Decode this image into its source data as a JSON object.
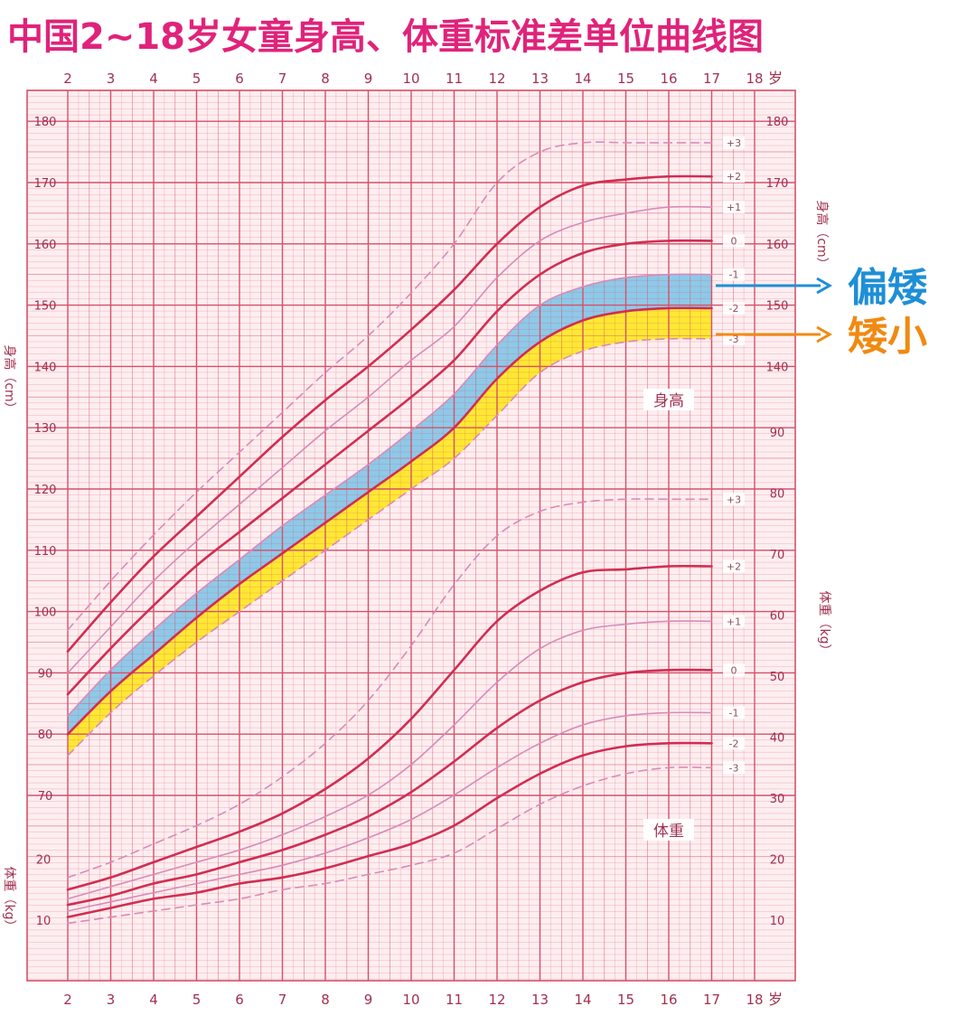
{
  "title": "中国2~18岁女童身高、体重标准差单位曲线图",
  "colors": {
    "title": "#e0237a",
    "grid": "#d6506a",
    "curve_main": "#d12d52",
    "curve_minor": "#d98ab8",
    "band_pianai": "#8ec9e8",
    "band_aixiao": "#ffe833",
    "annotation_pianai": "#1e8fd6",
    "annotation_aixiao": "#f08a12"
  },
  "annotations": {
    "pianai": "偏矮",
    "aixiao": "矮小"
  },
  "chart_data": {
    "type": "line",
    "x_unit": "岁",
    "x_ticks": [
      2,
      3,
      4,
      5,
      6,
      7,
      8,
      9,
      10,
      11,
      12,
      13,
      14,
      15,
      16,
      17,
      18
    ],
    "x_ticks_bottom": [
      2,
      3,
      4,
      5,
      6,
      7,
      8,
      9,
      10,
      11,
      12,
      13,
      14,
      15,
      16,
      17,
      18
    ],
    "height_label": "身高",
    "height_axis_label": "身高（cm）",
    "height_ticks": [
      70,
      80,
      90,
      100,
      110,
      120,
      130,
      140,
      150,
      160,
      170,
      180
    ],
    "weight_label": "体重",
    "weight_axis_label": "体重（kg）",
    "weight_ticks_right": [
      10,
      20,
      30,
      40,
      50,
      60,
      70,
      80,
      90
    ],
    "weight_ticks_left": [
      10,
      20
    ],
    "x": [
      2,
      3,
      4,
      5,
      6,
      7,
      8,
      9,
      10,
      11,
      12,
      13,
      14,
      15,
      16,
      17
    ],
    "height_series": [
      {
        "sd": "+3",
        "label": "+3",
        "values": [
          97,
          105,
          112.5,
          119.5,
          126,
          132.5,
          139,
          145,
          152,
          160,
          170,
          175,
          176.5,
          176.5,
          176.5,
          176.5
        ]
      },
      {
        "sd": "+2",
        "label": "+2",
        "values": [
          93.5,
          101.5,
          109,
          115.5,
          122,
          128.5,
          134.5,
          140,
          146,
          152.5,
          160,
          166,
          169.5,
          170.5,
          171,
          171
        ]
      },
      {
        "sd": "+1",
        "label": "+1",
        "values": [
          90,
          97.5,
          105,
          111.5,
          117.5,
          123.5,
          129.5,
          135,
          141,
          146.5,
          154.5,
          160.5,
          163.5,
          165,
          166,
          166
        ]
      },
      {
        "sd": "0",
        "label": "0",
        "values": [
          86.5,
          94,
          101,
          107.5,
          113,
          118.5,
          124,
          129.5,
          135,
          141,
          149,
          155,
          158.5,
          160,
          160.5,
          160.5
        ]
      },
      {
        "sd": "-1",
        "label": "-1",
        "values": [
          83,
          90.5,
          97,
          103,
          108.5,
          114,
          119,
          124,
          129.5,
          135.5,
          143.5,
          150,
          153,
          154.5,
          155,
          155
        ]
      },
      {
        "sd": "-2",
        "label": "-2",
        "values": [
          80,
          87,
          93,
          99,
          104.5,
          109.5,
          114.5,
          119.5,
          124.5,
          130,
          138,
          144,
          147.5,
          149,
          149.5,
          149.5
        ]
      },
      {
        "sd": "-3",
        "label": "-3",
        "values": [
          76.5,
          83.5,
          89.5,
          95,
          100,
          105,
          110,
          115,
          120,
          125,
          132,
          139,
          142.5,
          144,
          144.5,
          144.5
        ]
      }
    ],
    "weight_series": [
      {
        "sd": "+3",
        "label": "+3",
        "values": [
          17,
          19.5,
          22.5,
          25.5,
          29,
          33.5,
          39,
          46,
          55,
          65,
          73,
          77,
          78.5,
          79,
          79,
          79
        ]
      },
      {
        "sd": "+2",
        "label": "+2",
        "values": [
          15,
          17,
          19.5,
          22,
          24.5,
          27.5,
          31.5,
          36.5,
          43,
          51,
          59,
          64,
          67,
          67.5,
          68,
          68
        ]
      },
      {
        "sd": "+1",
        "label": "+1",
        "values": [
          13.5,
          15.5,
          17.5,
          19.5,
          21.5,
          24,
          27,
          30.5,
          35.5,
          42,
          49,
          54.5,
          57.5,
          58.5,
          59,
          59
        ]
      },
      {
        "sd": "0",
        "label": "0",
        "values": [
          12.5,
          14,
          16,
          17.5,
          19.5,
          21.5,
          24,
          27,
          31,
          36,
          41.5,
          46,
          49,
          50.5,
          51,
          51
        ]
      },
      {
        "sd": "-1",
        "label": "-1",
        "values": [
          11.5,
          13,
          14.5,
          16,
          17.5,
          19,
          21,
          23.5,
          26.5,
          30.5,
          35,
          39,
          42,
          43.5,
          44,
          44
        ]
      },
      {
        "sd": "-2",
        "label": "-2",
        "values": [
          10.5,
          12,
          13.5,
          14.5,
          16,
          17,
          18.5,
          20.5,
          22.5,
          25.5,
          30,
          34,
          37,
          38.5,
          39,
          39
        ]
      },
      {
        "sd": "-3",
        "label": "-3",
        "values": [
          9.5,
          10.5,
          11.5,
          12.5,
          13.5,
          15,
          16,
          17.5,
          19,
          21,
          25,
          29,
          32,
          34,
          35,
          35
        ]
      }
    ],
    "bands": [
      {
        "name": "偏矮",
        "between": [
          "-1",
          "-2"
        ]
      },
      {
        "name": "矮小",
        "between": [
          "-2",
          "-3"
        ]
      }
    ]
  }
}
